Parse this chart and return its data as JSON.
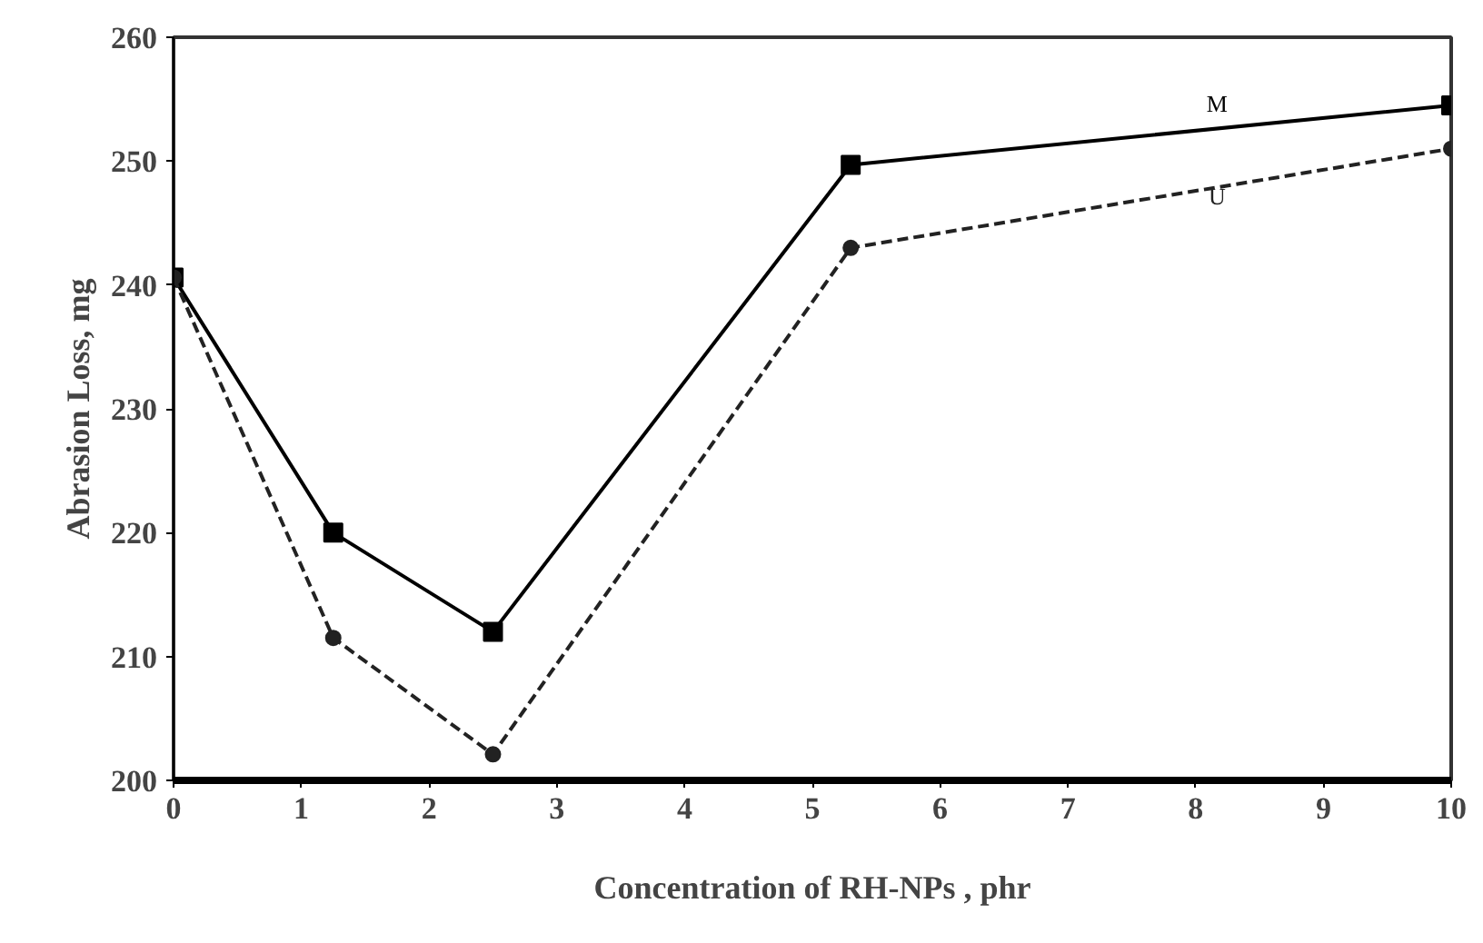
{
  "chart_data": {
    "type": "line",
    "xlabel": "Concentration of RH-NPs , phr",
    "ylabel": "Abrasion Loss, mg",
    "x": [
      0,
      1.25,
      2.5,
      5.3,
      10
    ],
    "series": [
      {
        "name": "M",
        "color": "#000000",
        "values": [
          240.6,
          220,
          212,
          249.7,
          254.5
        ],
        "marker": "square",
        "line_style": "solid"
      },
      {
        "name": "U",
        "color": "#222222",
        "values": [
          240.6,
          211.5,
          202.1,
          243,
          251
        ],
        "marker": "circle",
        "line_style": "dashed"
      }
    ],
    "xlim": [
      0,
      10
    ],
    "xticks": [
      0,
      1,
      2,
      3,
      4,
      5,
      6,
      7,
      8,
      9,
      10
    ],
    "ylim": [
      200,
      260
    ],
    "yticks": [
      200,
      210,
      220,
      230,
      240,
      250,
      260
    ],
    "grid": false,
    "legend": false
  }
}
